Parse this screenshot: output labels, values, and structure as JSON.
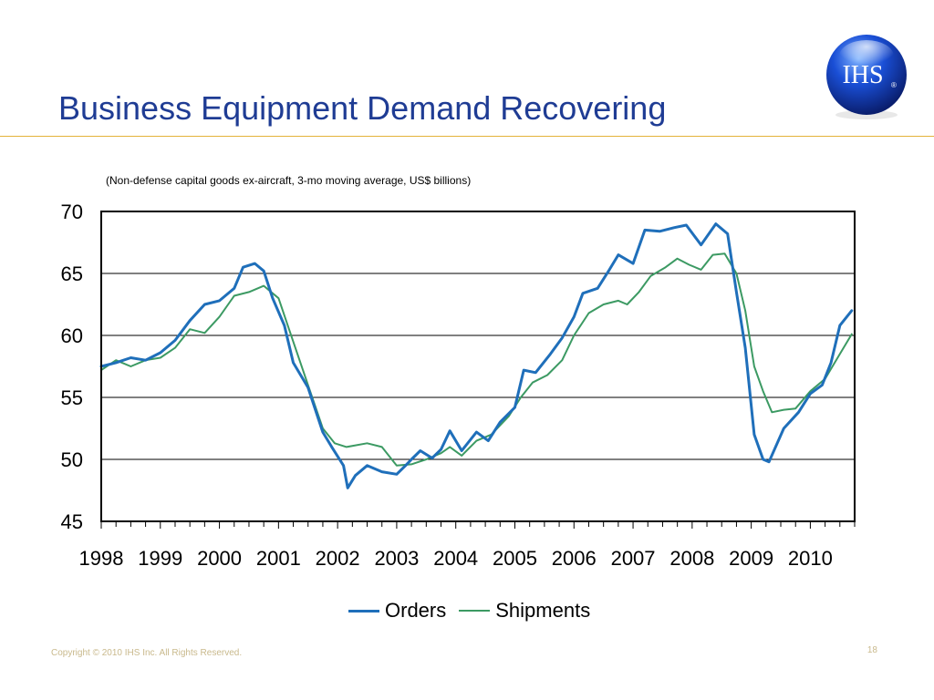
{
  "slide": {
    "title": "Business Equipment Demand Recovering",
    "subtitle": "(Non-defense capital goods ex-aircraft, 3-mo moving average, US$ billions)",
    "footer": "Copyright © 2010 IHS Inc. All Rights Reserved.",
    "page_number": "18",
    "logo_text": "IHS",
    "logo_mark": "®"
  },
  "colors": {
    "title": "#1f3c94",
    "rule": "#e3b33a",
    "orders": "#1f6fba",
    "shipments": "#3c9a63",
    "footer": "#c9b98c"
  },
  "chart_data": {
    "type": "line",
    "title": "",
    "xlabel": "",
    "ylabel": "",
    "ylim": [
      45,
      70
    ],
    "xlim": [
      1998.0,
      2010.75
    ],
    "y_ticks": [
      70,
      65,
      60,
      55,
      50,
      45
    ],
    "x_tick_labels": [
      "1998",
      "1999",
      "2000",
      "2001",
      "2002",
      "2003",
      "2004",
      "2005",
      "2006",
      "2007",
      "2008",
      "2009",
      "2010"
    ],
    "grid": "horizontal",
    "legend": "bottom",
    "series": [
      {
        "name": "Orders",
        "points": [
          [
            1998.0,
            57.5
          ],
          [
            1998.25,
            57.8
          ],
          [
            1998.5,
            58.2
          ],
          [
            1998.75,
            58.0
          ],
          [
            1999.0,
            58.6
          ],
          [
            1999.25,
            59.6
          ],
          [
            1999.5,
            61.2
          ],
          [
            1999.75,
            62.5
          ],
          [
            2000.0,
            62.8
          ],
          [
            2000.25,
            63.8
          ],
          [
            2000.4,
            65.5
          ],
          [
            2000.6,
            65.8
          ],
          [
            2000.75,
            65.2
          ],
          [
            2000.9,
            63.0
          ],
          [
            2001.1,
            60.8
          ],
          [
            2001.25,
            57.8
          ],
          [
            2001.5,
            55.8
          ],
          [
            2001.75,
            52.2
          ],
          [
            2001.9,
            51.0
          ],
          [
            2002.1,
            49.5
          ],
          [
            2002.17,
            47.7
          ],
          [
            2002.3,
            48.7
          ],
          [
            2002.5,
            49.5
          ],
          [
            2002.75,
            49.0
          ],
          [
            2003.0,
            48.8
          ],
          [
            2003.15,
            49.5
          ],
          [
            2003.25,
            50.0
          ],
          [
            2003.4,
            50.7
          ],
          [
            2003.6,
            50.1
          ],
          [
            2003.75,
            50.8
          ],
          [
            2003.9,
            52.3
          ],
          [
            2004.1,
            50.7
          ],
          [
            2004.35,
            52.2
          ],
          [
            2004.55,
            51.5
          ],
          [
            2004.75,
            53.0
          ],
          [
            2005.0,
            54.2
          ],
          [
            2005.15,
            57.2
          ],
          [
            2005.35,
            57.0
          ],
          [
            2005.6,
            58.5
          ],
          [
            2005.8,
            59.8
          ],
          [
            2006.0,
            61.5
          ],
          [
            2006.15,
            63.4
          ],
          [
            2006.4,
            63.8
          ],
          [
            2006.6,
            65.3
          ],
          [
            2006.75,
            66.5
          ],
          [
            2007.0,
            65.8
          ],
          [
            2007.2,
            68.5
          ],
          [
            2007.45,
            68.4
          ],
          [
            2007.7,
            68.7
          ],
          [
            2007.9,
            68.9
          ],
          [
            2008.15,
            67.3
          ],
          [
            2008.4,
            69.0
          ],
          [
            2008.6,
            68.2
          ],
          [
            2008.75,
            63.5
          ],
          [
            2008.9,
            59.0
          ],
          [
            2009.05,
            52.0
          ],
          [
            2009.2,
            50.0
          ],
          [
            2009.3,
            49.8
          ],
          [
            2009.55,
            52.5
          ],
          [
            2009.8,
            53.8
          ],
          [
            2010.0,
            55.3
          ],
          [
            2010.2,
            56.0
          ],
          [
            2010.35,
            57.8
          ],
          [
            2010.5,
            60.8
          ],
          [
            2010.7,
            62.0
          ]
        ]
      },
      {
        "name": "Shipments",
        "points": [
          [
            1998.0,
            57.2
          ],
          [
            1998.25,
            58.0
          ],
          [
            1998.5,
            57.5
          ],
          [
            1998.75,
            58.0
          ],
          [
            1999.0,
            58.2
          ],
          [
            1999.25,
            59.0
          ],
          [
            1999.5,
            60.5
          ],
          [
            1999.75,
            60.2
          ],
          [
            2000.0,
            61.5
          ],
          [
            2000.25,
            63.2
          ],
          [
            2000.5,
            63.5
          ],
          [
            2000.75,
            64.0
          ],
          [
            2001.0,
            63.0
          ],
          [
            2001.25,
            59.5
          ],
          [
            2001.5,
            56.0
          ],
          [
            2001.75,
            52.5
          ],
          [
            2001.95,
            51.3
          ],
          [
            2002.15,
            51.0
          ],
          [
            2002.5,
            51.3
          ],
          [
            2002.75,
            51.0
          ],
          [
            2003.0,
            49.5
          ],
          [
            2003.25,
            49.6
          ],
          [
            2003.5,
            50.0
          ],
          [
            2003.75,
            50.5
          ],
          [
            2003.9,
            51.0
          ],
          [
            2004.1,
            50.3
          ],
          [
            2004.35,
            51.5
          ],
          [
            2004.6,
            52.0
          ],
          [
            2004.9,
            53.5
          ],
          [
            2005.1,
            55.0
          ],
          [
            2005.3,
            56.2
          ],
          [
            2005.55,
            56.8
          ],
          [
            2005.8,
            58.0
          ],
          [
            2006.0,
            60.0
          ],
          [
            2006.25,
            61.8
          ],
          [
            2006.5,
            62.5
          ],
          [
            2006.75,
            62.8
          ],
          [
            2006.9,
            62.5
          ],
          [
            2007.1,
            63.5
          ],
          [
            2007.3,
            64.8
          ],
          [
            2007.55,
            65.5
          ],
          [
            2007.75,
            66.2
          ],
          [
            2007.95,
            65.7
          ],
          [
            2008.15,
            65.3
          ],
          [
            2008.35,
            66.5
          ],
          [
            2008.55,
            66.6
          ],
          [
            2008.75,
            65.0
          ],
          [
            2008.9,
            62.0
          ],
          [
            2009.05,
            57.5
          ],
          [
            2009.2,
            55.5
          ],
          [
            2009.35,
            53.8
          ],
          [
            2009.55,
            54.0
          ],
          [
            2009.75,
            54.1
          ],
          [
            2010.0,
            55.5
          ],
          [
            2010.25,
            56.5
          ],
          [
            2010.5,
            58.5
          ],
          [
            2010.7,
            60.1
          ]
        ]
      }
    ]
  }
}
